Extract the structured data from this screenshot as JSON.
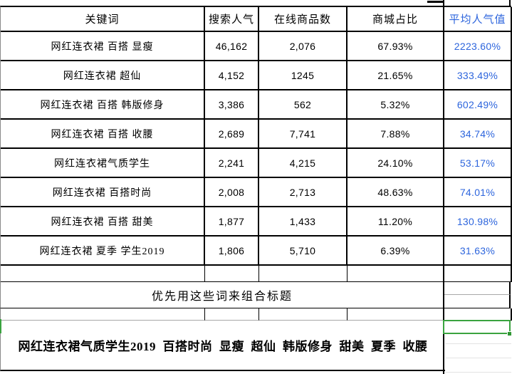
{
  "colors": {
    "accent_blue": "#2d65dd",
    "selection_green": "#3aa33f",
    "grid_black": "#000000",
    "grid_gray": "#a8a8a8",
    "grid_faint": "#e3e3e3"
  },
  "table": {
    "headers": [
      "关键词",
      "搜索人气",
      "在线商品数",
      "商城占比",
      "平均人气值"
    ],
    "rows": [
      {
        "keyword": "网红连衣裙 百搭 显瘦",
        "search_volume": "46,162",
        "online_products": "2,076",
        "mall_share": "67.93%",
        "avg_popularity": "2223.60%"
      },
      {
        "keyword": "网红连衣裙 超仙",
        "search_volume": "4,152",
        "online_products": "1245",
        "mall_share": "21.65%",
        "avg_popularity": "333.49%"
      },
      {
        "keyword": "网红连衣裙 百搭 韩版修身",
        "search_volume": "3,386",
        "online_products": "562",
        "mall_share": "5.32%",
        "avg_popularity": "602.49%"
      },
      {
        "keyword": "网红连衣裙 百搭 收腰",
        "search_volume": "2,689",
        "online_products": "7,741",
        "mall_share": "7.88%",
        "avg_popularity": "34.74%"
      },
      {
        "keyword": "网红连衣裙气质学生",
        "search_volume": "2,241",
        "online_products": "4,215",
        "mall_share": "24.10%",
        "avg_popularity": "53.17%"
      },
      {
        "keyword": "网红连衣裙 百搭时尚",
        "search_volume": "2,008",
        "online_products": "2,713",
        "mall_share": "48.63%",
        "avg_popularity": "74.01%"
      },
      {
        "keyword": "网红连衣裙 百搭 甜美",
        "search_volume": "1,877",
        "online_products": "1,433",
        "mall_share": "11.20%",
        "avg_popularity": "130.98%"
      },
      {
        "keyword": "网红连衣裙 夏季 学生2019",
        "search_volume": "1,806",
        "online_products": "5,710",
        "mall_share": "6.39%",
        "avg_popularity": "31.63%"
      }
    ]
  },
  "notes": {
    "priority_tip": "优先用这些词来组合标题",
    "combined_title": "网红连衣裙气质学生2019  百搭时尚  显瘦  超仙  韩版修身  甜美  夏季  收腰"
  }
}
